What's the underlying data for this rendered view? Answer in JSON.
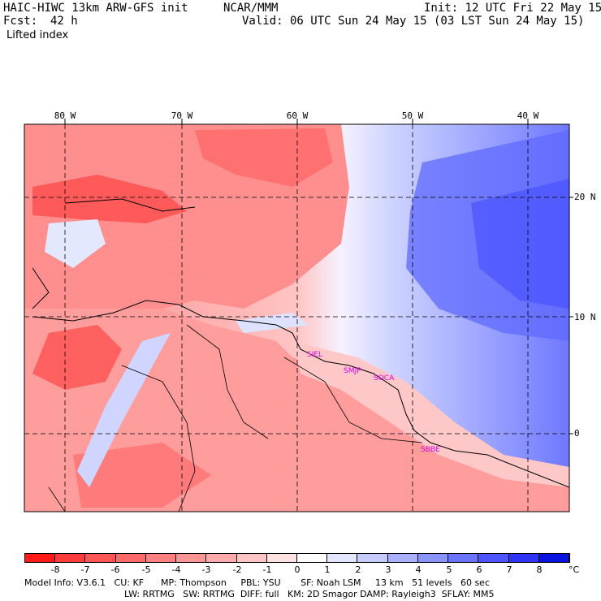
{
  "header": {
    "model": "HAIC-HIWC 13km ARW-GFS init",
    "org": "NCAR/MMM",
    "init": "Init: 12 UTC Fri 22 May 15",
    "fcst_label": "Fcst:",
    "fcst_value": "42 h",
    "valid": "Valid: 06 UTC Sun 24 May 15 (03 LST Sun 24 May 15)",
    "field": "Lifted index"
  },
  "map": {
    "lon_labels": [
      "80 W",
      "70 W",
      "60 W",
      "50 W",
      "40 W"
    ],
    "lat_labels": [
      "20 N",
      "10 N",
      "0"
    ],
    "stations": [
      "SIEL",
      "SMJP",
      "SOCA",
      "SBBE"
    ]
  },
  "colorbar": {
    "labels": [
      "-8",
      "-7",
      "-6",
      "-5",
      "-4",
      "-3",
      "-2",
      "-1",
      "0",
      "1",
      "2",
      "3",
      "4",
      "5",
      "6",
      "7",
      "8"
    ],
    "unit": "°C",
    "colors": [
      "#ff1a1a",
      "#ff3a3a",
      "#ff5555",
      "#ff6a6a",
      "#ff8080",
      "#ff9595",
      "#ffabab",
      "#ffc4c4",
      "#ffe3e3",
      "#ffffff",
      "#e3e6ff",
      "#c5cbff",
      "#a8b0ff",
      "#8a94ff",
      "#6a74ff",
      "#4c55ff",
      "#2e35f5",
      "#0a12e0"
    ],
    "negative_color": "#ff4a4a",
    "positive_color": "#4855ff"
  },
  "footer": {
    "line1": "Model Info: V3.6.1   CU: KF      MP: Thompson     PBL: YSU       SF: Noah LSM     13 km   51 levels   60 sec",
    "line2": "LW: RRTMG   SW: RRTMG  DIFF: full   KM: 2D Smagor DAMP: Rayleigh3  SFLAY: MM5"
  }
}
